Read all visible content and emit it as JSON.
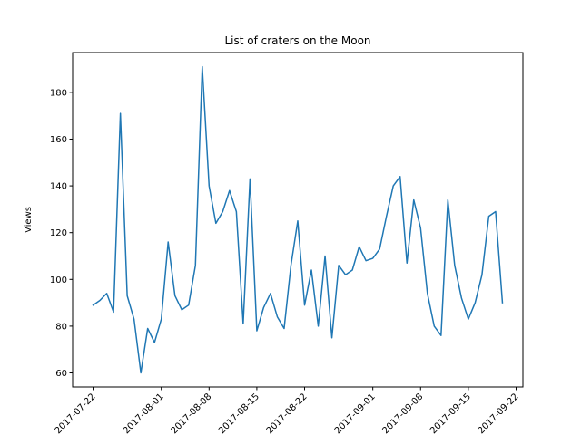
{
  "chart_data": {
    "type": "line",
    "title": "List of craters on the Moon",
    "xlabel": "",
    "ylabel": "Views",
    "x_ticks": [
      "2017-07-22",
      "2017-08-01",
      "2017-08-08",
      "2017-08-15",
      "2017-08-22",
      "2017-09-01",
      "2017-09-08",
      "2017-09-15",
      "2017-09-22"
    ],
    "y_ticks": [
      60,
      80,
      100,
      120,
      140,
      160,
      180
    ],
    "xlim": [
      "2017-07-19",
      "2017-09-23"
    ],
    "ylim": [
      54,
      197
    ],
    "grid": false,
    "color": "#1f77b4",
    "series": [
      {
        "x": [
          "2017-07-22",
          "2017-07-23",
          "2017-07-24",
          "2017-07-25",
          "2017-07-26",
          "2017-07-27",
          "2017-07-28",
          "2017-07-29",
          "2017-07-30",
          "2017-07-31",
          "2017-08-01",
          "2017-08-02",
          "2017-08-03",
          "2017-08-04",
          "2017-08-05",
          "2017-08-06",
          "2017-08-07",
          "2017-08-08",
          "2017-08-09",
          "2017-08-10",
          "2017-08-11",
          "2017-08-12",
          "2017-08-13",
          "2017-08-14",
          "2017-08-15",
          "2017-08-16",
          "2017-08-17",
          "2017-08-18",
          "2017-08-19",
          "2017-08-20",
          "2017-08-21",
          "2017-08-22",
          "2017-08-23",
          "2017-08-24",
          "2017-08-25",
          "2017-08-26",
          "2017-08-27",
          "2017-08-28",
          "2017-08-29",
          "2017-08-30",
          "2017-08-31",
          "2017-09-01",
          "2017-09-02",
          "2017-09-03",
          "2017-09-04",
          "2017-09-05",
          "2017-09-06",
          "2017-09-07",
          "2017-09-08",
          "2017-09-09",
          "2017-09-10",
          "2017-09-11",
          "2017-09-12",
          "2017-09-13",
          "2017-09-14",
          "2017-09-15",
          "2017-09-16",
          "2017-09-17",
          "2017-09-18",
          "2017-09-19",
          "2017-09-20"
        ],
        "values": [
          89,
          91,
          94,
          86,
          171,
          93,
          83,
          60,
          79,
          73,
          83,
          116,
          93,
          87,
          89,
          106,
          191,
          140,
          124,
          129,
          138,
          129,
          81,
          143,
          78,
          88,
          94,
          84,
          79,
          106,
          125,
          89,
          104,
          80,
          110,
          75,
          106,
          102,
          104,
          114,
          108,
          109,
          113,
          127,
          140,
          144,
          107,
          134,
          122,
          94,
          80,
          76,
          134,
          106,
          92,
          83,
          90,
          102,
          127,
          129,
          90
        ]
      }
    ]
  }
}
